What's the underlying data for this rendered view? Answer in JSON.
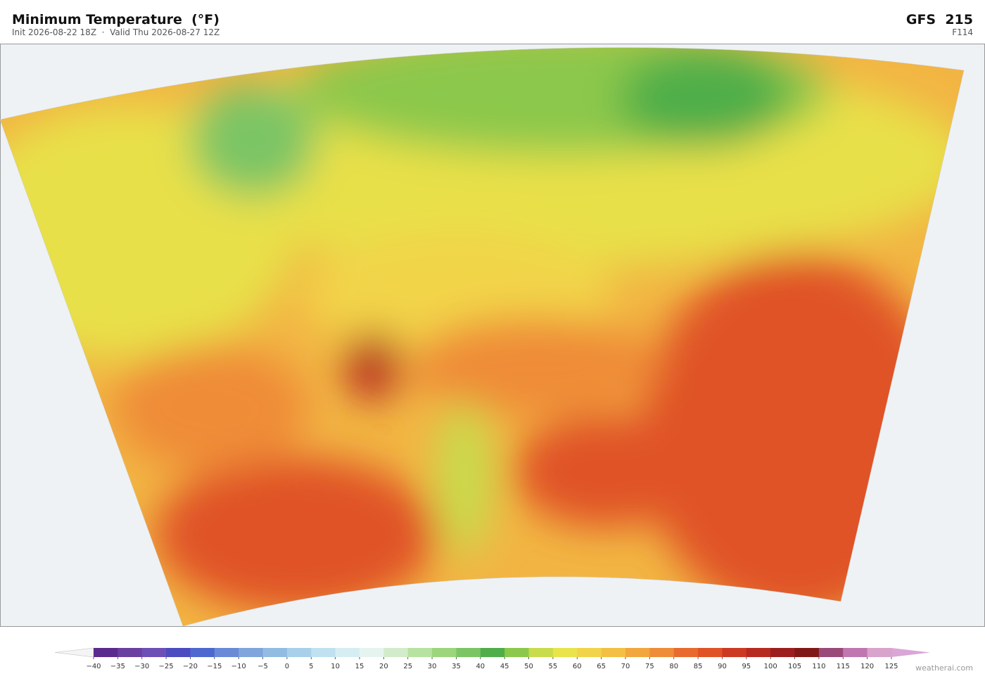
{
  "header": {
    "title": "Minimum Temperature  (°F)",
    "subtitle": "Init 2026-08-22 18Z  ·  Valid Thu 2026-08-27 12Z",
    "model": "GFS  215",
    "forecast_hour": "F114"
  },
  "colorbar": {
    "ticks": [
      {
        "value": -40,
        "label": "−40"
      },
      {
        "value": -35,
        "label": "−35"
      },
      {
        "value": -30,
        "label": "−30"
      },
      {
        "value": -25,
        "label": "−25"
      },
      {
        "value": -20,
        "label": "−20"
      },
      {
        "value": -15,
        "label": "−15"
      },
      {
        "value": -10,
        "label": "−10"
      },
      {
        "value": -5,
        "label": "−5"
      },
      0,
      5,
      10,
      15,
      20,
      25,
      30,
      35,
      40,
      45,
      50,
      55,
      60,
      65,
      70,
      75,
      80,
      85,
      90,
      95,
      100,
      105,
      110,
      115,
      120,
      125
    ],
    "colors": [
      "#5b2a8f",
      "#6b3fa0",
      "#6e4fb5",
      "#4a4cc0",
      "#4f68cf",
      "#6a8ad8",
      "#7fa5dc",
      "#93bce2",
      "#a9d0ea",
      "#c0e2f0",
      "#d6eef3",
      "#e6f4ef",
      "#d2eccb",
      "#b8e2a0",
      "#9cd57c",
      "#7cc565",
      "#4fae4a",
      "#8cc84b",
      "#c8dc4c",
      "#e8e44a",
      "#f2d44a",
      "#f4c043",
      "#f2a63e",
      "#ef8c38",
      "#e86a2f",
      "#e05326",
      "#cc3a22",
      "#b72a20",
      "#9c1e1e",
      "#811818",
      "#9a4a7a",
      "#c077b0",
      "#d8a3cc"
    ],
    "under_color": "#f4f4f4",
    "over_color": "#d9a6d6"
  },
  "footer": {
    "credit": "weatherai.com"
  }
}
